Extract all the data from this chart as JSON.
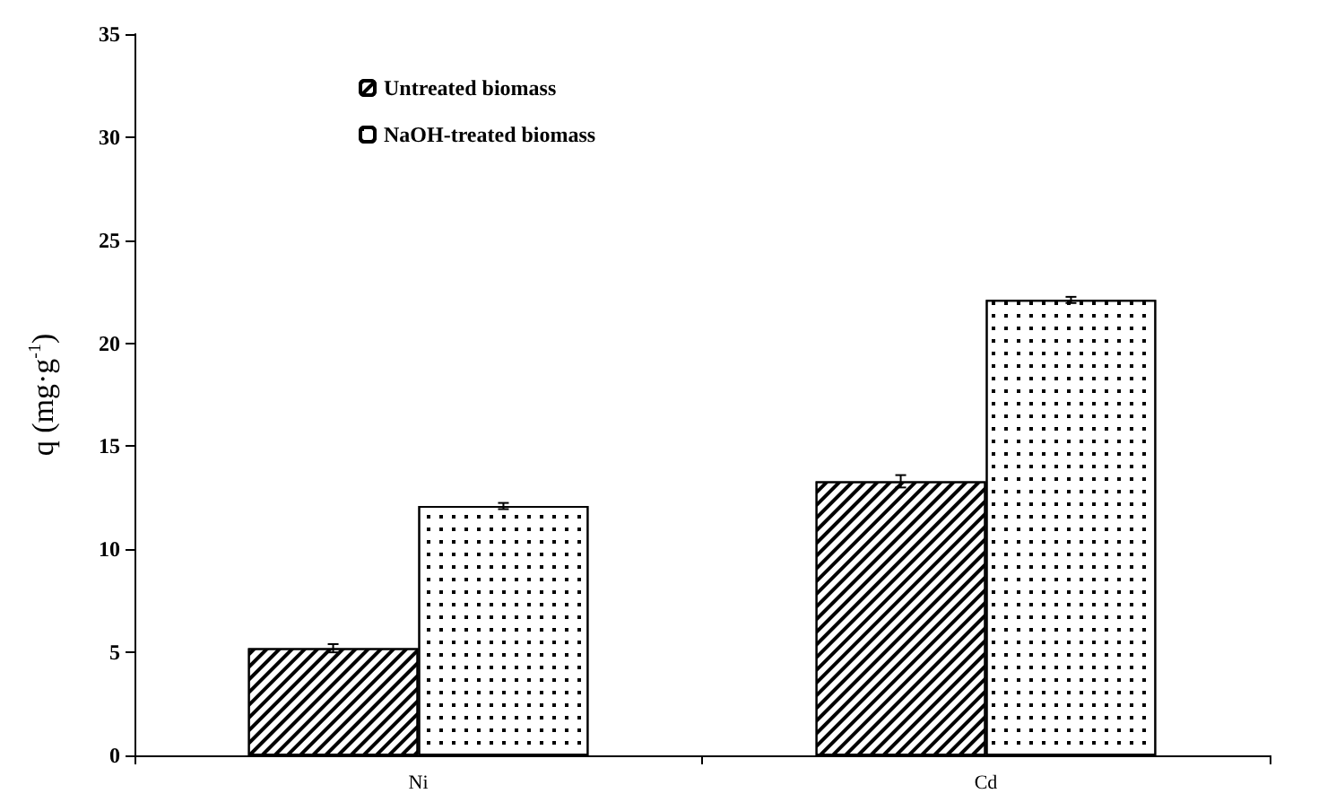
{
  "chart_data": {
    "type": "bar",
    "ylabel": "q (mg·g$^{-1}$)",
    "categories": [
      "Ni",
      "Cd"
    ],
    "series": [
      {
        "name": "Untreated biomass",
        "color": "#000000",
        "values": [
          5.2,
          13.3
        ],
        "errors": [
          0.2,
          0.3
        ]
      },
      {
        "name": "NaOH-treated biomass",
        "color": "#000000",
        "values": [
          12.1,
          22.1
        ],
        "errors": [
          0.15,
          0.15
        ]
      }
    ],
    "ylim": [
      0,
      35
    ],
    "yticks": [
      0,
      5,
      10,
      15,
      20,
      25,
      30,
      35
    ],
    "grid": false,
    "legend": "top left"
  }
}
